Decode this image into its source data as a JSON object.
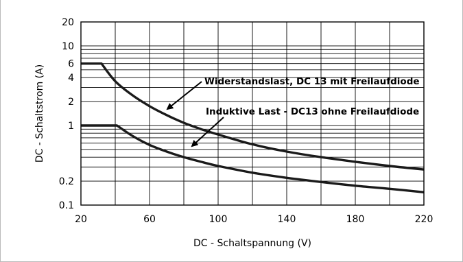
{
  "chart_data": {
    "type": "line",
    "xlabel": "DC - Schaltspannung (V)",
    "ylabel": "DC - Schaltstrom (A)",
    "xlim": [
      20,
      220
    ],
    "ylim": [
      0.1,
      20
    ],
    "y_scale": "log",
    "grid": true,
    "x_ticks": [
      20,
      60,
      100,
      140,
      180,
      220
    ],
    "x_tick_labels": [
      "20",
      "60",
      "100",
      "140",
      "180",
      "220"
    ],
    "y_ticks": [
      0.1,
      0.2,
      1,
      2,
      4,
      6,
      10,
      20
    ],
    "y_tick_labels": [
      "0.1",
      "0.2",
      "1",
      "2",
      "4",
      "6",
      "10",
      "20"
    ],
    "series": [
      {
        "name": "Widerstandslast, DC 13 mit Freilaufdiode",
        "x": [
          20,
          32,
          40,
          50,
          60,
          70,
          80,
          90,
          100,
          120,
          140,
          160,
          180,
          200,
          220
        ],
        "y": [
          6,
          6,
          3.6,
          2.4,
          1.75,
          1.35,
          1.08,
          0.9,
          0.77,
          0.58,
          0.47,
          0.4,
          0.35,
          0.31,
          0.28
        ]
      },
      {
        "name": "Induktive Last - DC13 ohne Freilaufdiode",
        "x": [
          20,
          41,
          50,
          60,
          70,
          80,
          90,
          100,
          120,
          140,
          160,
          180,
          200,
          220
        ],
        "y": [
          1,
          1,
          0.74,
          0.57,
          0.47,
          0.4,
          0.35,
          0.31,
          0.255,
          0.22,
          0.195,
          0.175,
          0.16,
          0.145
        ]
      }
    ],
    "annotations": [
      {
        "text": "Widerstandslast, DC 13 mit Freilaufdiode"
      },
      {
        "text": "Induktive Last - DC13 ohne Freilaufdiode"
      }
    ]
  }
}
